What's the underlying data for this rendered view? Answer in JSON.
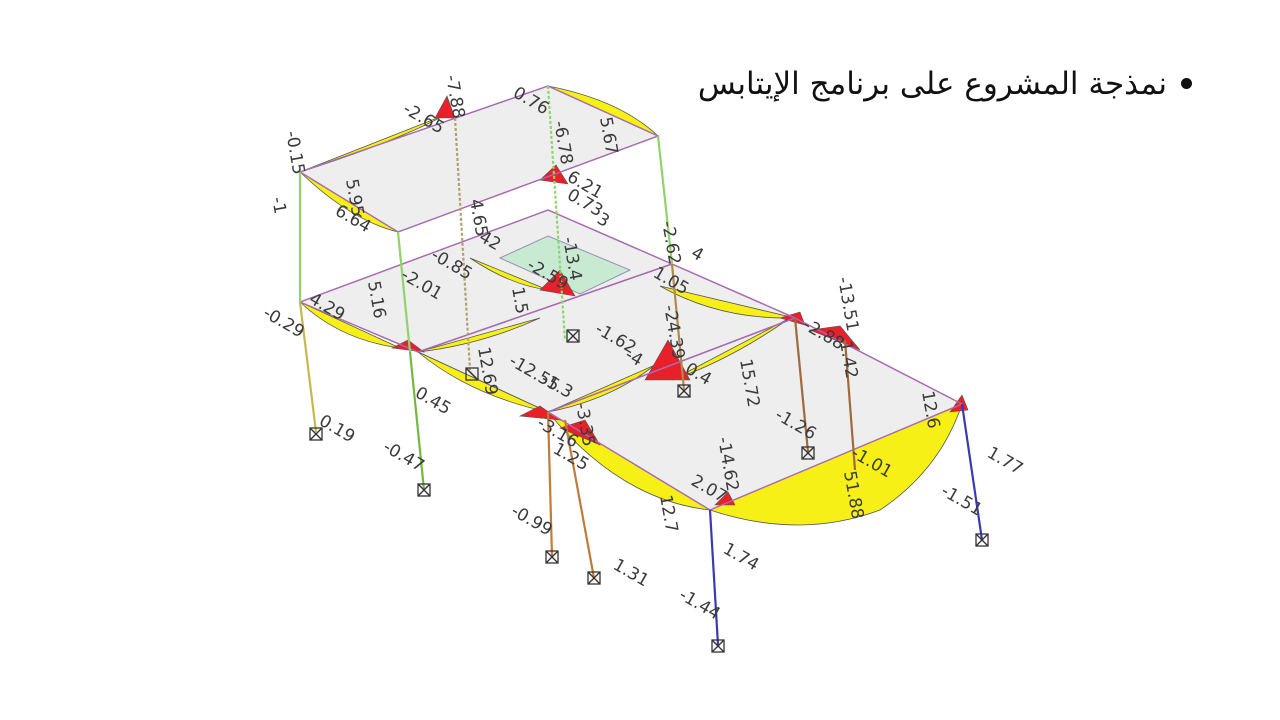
{
  "slide": {
    "bullet_text": "نمذجة المشروع على برنامج الإيتابس"
  },
  "model": {
    "colors": {
      "positive_moment": "#f7f017",
      "negative_moment": "#e8202a",
      "slab": "#eeeeee",
      "column": "#8fd46a",
      "support": "#333333"
    },
    "labels": [
      "-7.88",
      "-2.65",
      "0.76",
      "-6.78",
      "5.67",
      "-0.15",
      "5.95",
      "-1",
      "6.64",
      "6.21",
      "0.73",
      "3",
      "4.65",
      "42",
      "-2.62",
      "4",
      "-0.85",
      "-2.01",
      "5.16",
      "-2.59",
      "-13.4",
      "1.05",
      "4.29",
      "-0.29",
      "1.5",
      "-1.62",
      "-24.39",
      "-13.51",
      "-2.88",
      "1.42",
      "12.69",
      "-12.55",
      "-4",
      "0.4",
      "15.72",
      "0.45",
      "-1.3",
      "-3.35",
      "-1.26",
      "12.6",
      "0.19",
      "-3.16",
      "1.25",
      "-14.62",
      "-1.01",
      "1.77",
      "-0.47",
      "2.07",
      "51.88",
      "12.7",
      "-1.51",
      "-0.99",
      "1.31",
      "1.74",
      "-1.44"
    ]
  }
}
